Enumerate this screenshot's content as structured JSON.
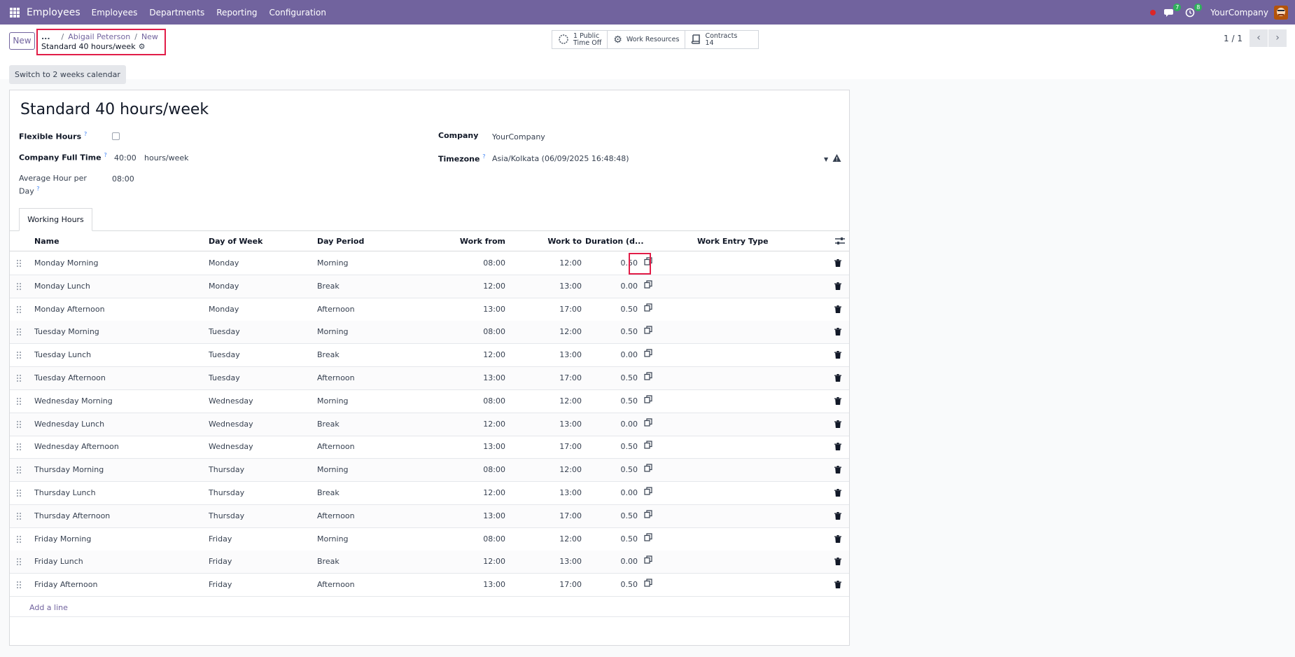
{
  "navbar": {
    "app_name": "Employees",
    "menu": [
      "Employees",
      "Departments",
      "Reporting",
      "Configuration"
    ],
    "messages_count": "7",
    "activities_count": "8",
    "company": "YourCompany"
  },
  "control": {
    "new_label": "New",
    "breadcrumb": {
      "dots": "...",
      "items": [
        "Abigail Peterson",
        "New"
      ],
      "current": "Standard 40 hours/week"
    },
    "stat_buttons": [
      {
        "line1": "1 Public",
        "line2": "Time Off",
        "icon": "time-off-icon"
      },
      {
        "line1": "Work Resources",
        "line2": "",
        "icon": "gears-icon"
      },
      {
        "line1": "Contracts",
        "line2": "14",
        "icon": "book-icon"
      }
    ],
    "pager": "1 / 1",
    "switch_label": "Switch to 2 weeks calendar"
  },
  "form": {
    "title": "Standard 40 hours/week",
    "flexible_hours_label": "Flexible Hours",
    "flexible_hours_checked": false,
    "company_full_time_label": "Company Full Time",
    "company_full_time_value": "40:00",
    "company_full_time_unit": "hours/week",
    "average_hour_label": "Average Hour per Day",
    "average_hour_value": "08:00",
    "company_label": "Company",
    "company_value": "YourCompany",
    "timezone_label": "Timezone",
    "timezone_value": "Asia/Kolkata (06/09/2025 16:48:48)",
    "help_mark": "?"
  },
  "tabs": [
    "Working Hours"
  ],
  "table": {
    "headers": {
      "name": "Name",
      "day_of_week": "Day of Week",
      "day_period": "Day Period",
      "work_from": "Work from",
      "work_to": "Work to",
      "duration": "Duration (d...",
      "work_entry_type": "Work Entry Type"
    },
    "rows": [
      {
        "name": "Monday Morning",
        "day": "Monday",
        "period": "Morning",
        "from": "08:00",
        "to": "12:00",
        "duration": "0.50"
      },
      {
        "name": "Monday Lunch",
        "day": "Monday",
        "period": "Break",
        "from": "12:00",
        "to": "13:00",
        "duration": "0.00"
      },
      {
        "name": "Monday Afternoon",
        "day": "Monday",
        "period": "Afternoon",
        "from": "13:00",
        "to": "17:00",
        "duration": "0.50"
      },
      {
        "name": "Tuesday Morning",
        "day": "Tuesday",
        "period": "Morning",
        "from": "08:00",
        "to": "12:00",
        "duration": "0.50"
      },
      {
        "name": "Tuesday Lunch",
        "day": "Tuesday",
        "period": "Break",
        "from": "12:00",
        "to": "13:00",
        "duration": "0.00"
      },
      {
        "name": "Tuesday Afternoon",
        "day": "Tuesday",
        "period": "Afternoon",
        "from": "13:00",
        "to": "17:00",
        "duration": "0.50"
      },
      {
        "name": "Wednesday Morning",
        "day": "Wednesday",
        "period": "Morning",
        "from": "08:00",
        "to": "12:00",
        "duration": "0.50"
      },
      {
        "name": "Wednesday Lunch",
        "day": "Wednesday",
        "period": "Break",
        "from": "12:00",
        "to": "13:00",
        "duration": "0.00"
      },
      {
        "name": "Wednesday Afternoon",
        "day": "Wednesday",
        "period": "Afternoon",
        "from": "13:00",
        "to": "17:00",
        "duration": "0.50"
      },
      {
        "name": "Thursday Morning",
        "day": "Thursday",
        "period": "Morning",
        "from": "08:00",
        "to": "12:00",
        "duration": "0.50"
      },
      {
        "name": "Thursday Lunch",
        "day": "Thursday",
        "period": "Break",
        "from": "12:00",
        "to": "13:00",
        "duration": "0.00"
      },
      {
        "name": "Thursday Afternoon",
        "day": "Thursday",
        "period": "Afternoon",
        "from": "13:00",
        "to": "17:00",
        "duration": "0.50"
      },
      {
        "name": "Friday Morning",
        "day": "Friday",
        "period": "Morning",
        "from": "08:00",
        "to": "12:00",
        "duration": "0.50"
      },
      {
        "name": "Friday Lunch",
        "day": "Friday",
        "period": "Break",
        "from": "12:00",
        "to": "13:00",
        "duration": "0.00"
      },
      {
        "name": "Friday Afternoon",
        "day": "Friday",
        "period": "Afternoon",
        "from": "13:00",
        "to": "17:00",
        "duration": "0.50"
      }
    ],
    "add_line": "Add a line"
  },
  "colors": {
    "brand": "#71639e",
    "highlight": "#e11d48",
    "badge": "#2fb15b"
  }
}
